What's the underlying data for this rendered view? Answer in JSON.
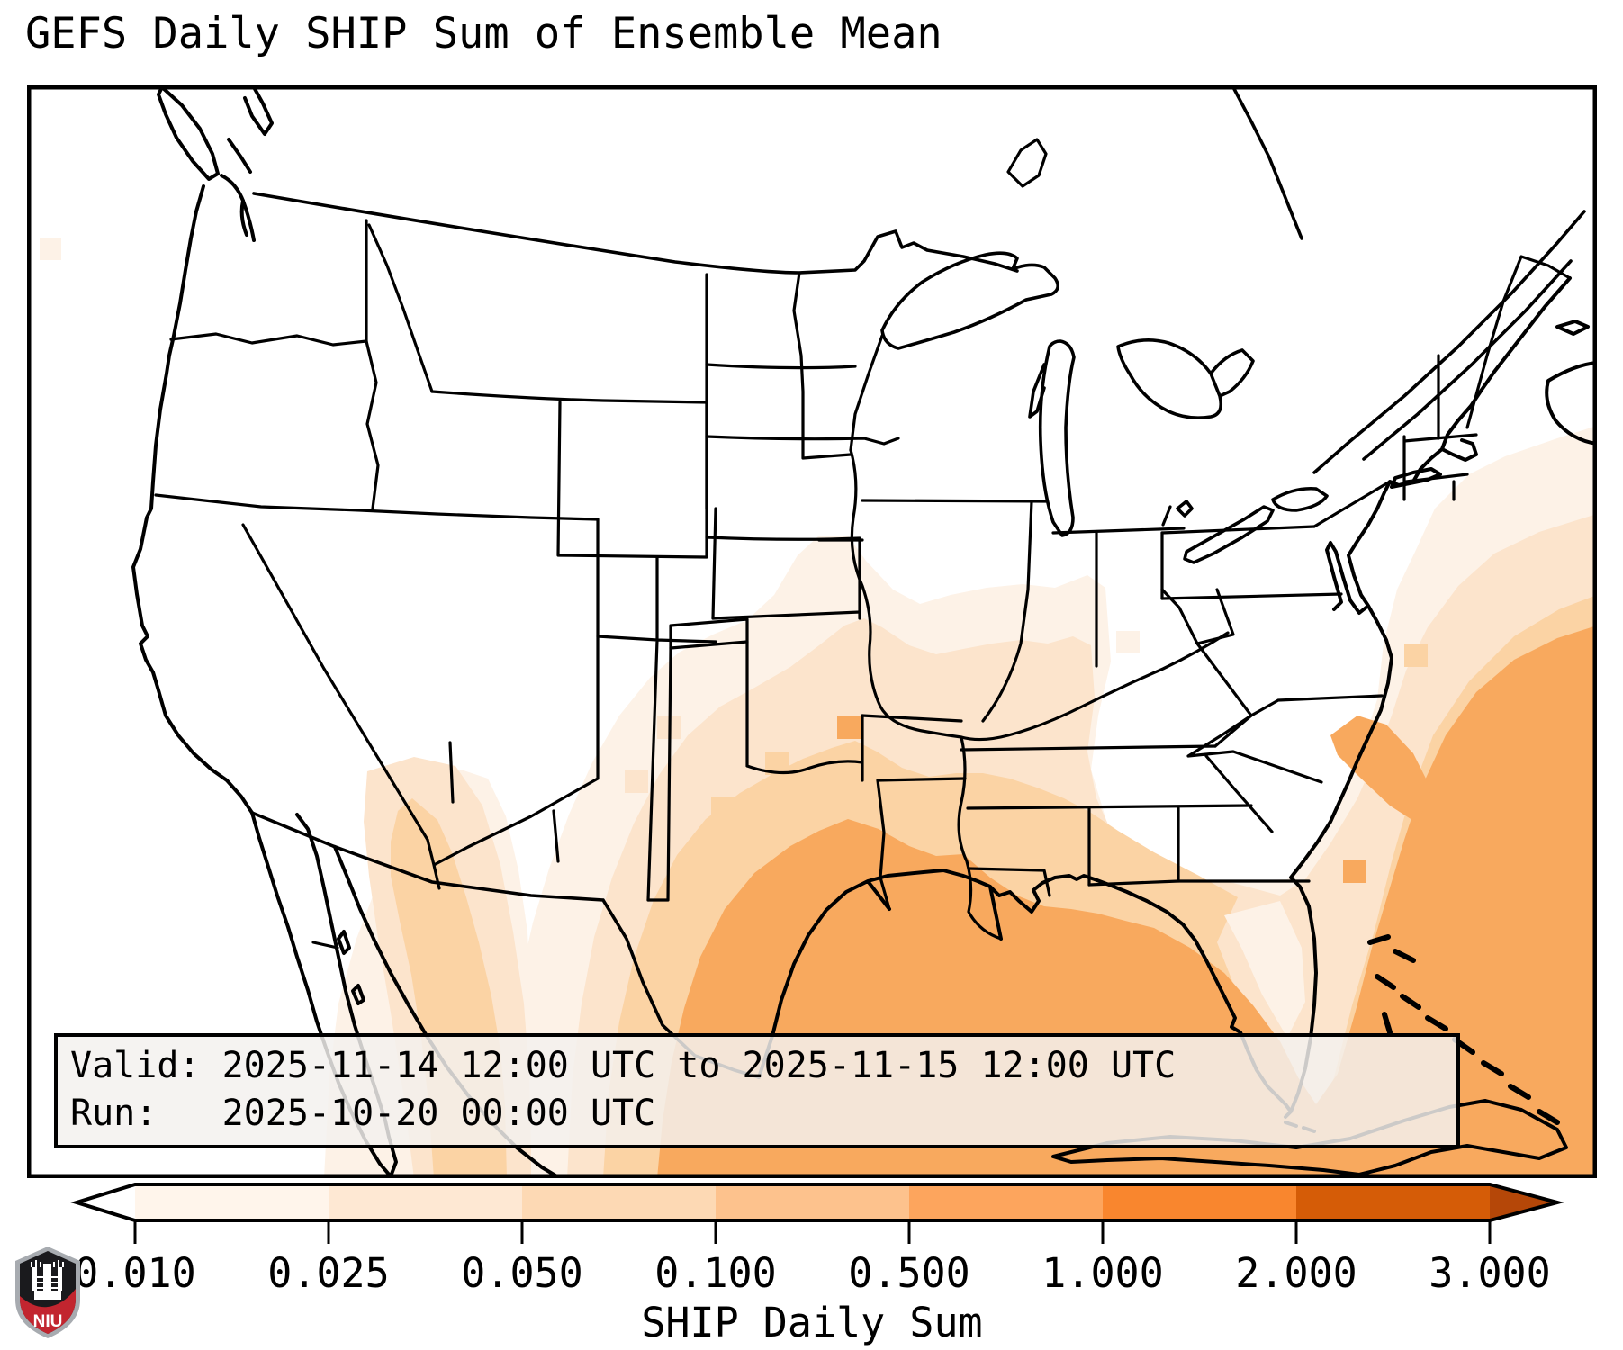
{
  "title": "GEFS Daily SHIP Sum of Ensemble Mean",
  "info_box": {
    "valid_line": "Valid: 2025-11-14 12:00 UTC to 2025-11-15 12:00 UTC",
    "run_line": "Run:   2025-10-20 00:00 UTC"
  },
  "colorbar": {
    "label": "SHIP Daily Sum",
    "tick_labels": [
      "0.010",
      "0.025",
      "0.050",
      "0.100",
      "0.500",
      "1.000",
      "2.000",
      "3.000"
    ],
    "segment_colors": [
      "#fff5eb",
      "#fee8d3",
      "#fdd9b4",
      "#fdc28d",
      "#fda55d",
      "#f9862e",
      "#d55c07"
    ],
    "under_color": "#ffffff",
    "over_color": "#b54708",
    "outline": "#000000"
  },
  "map": {
    "background": "#ffffff",
    "line_color": "#000000",
    "shade_colors": {
      "L1": "#fdf2e7",
      "L2": "#fce4cc",
      "L3": "#fbd3a4",
      "L4": "#f8a95e"
    }
  },
  "logo": {
    "text": "NIU",
    "shield_red": "#c2252f",
    "shield_dark": "#1a1a1d",
    "shield_silver": "#a7abb0"
  }
}
